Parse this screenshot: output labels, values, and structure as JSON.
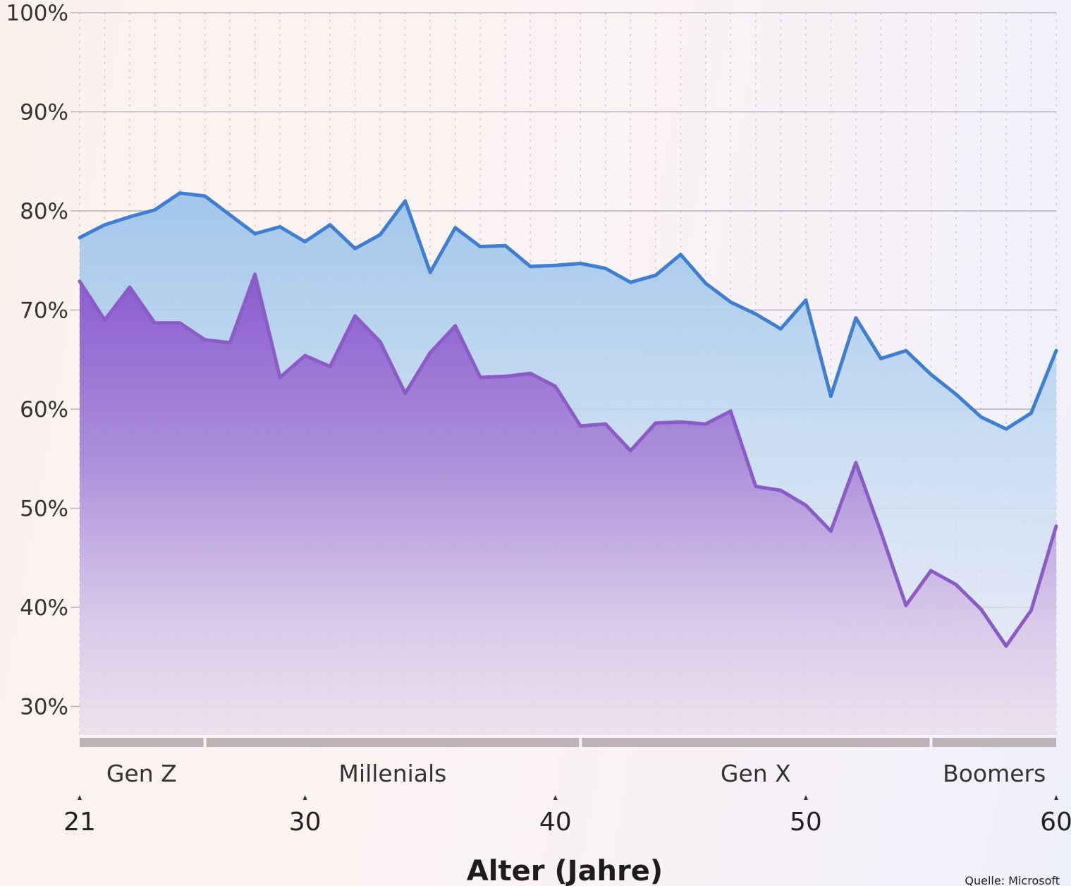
{
  "chart_data": {
    "type": "area",
    "xlabel": "Alter (Jahre)",
    "ylabel": "",
    "xlim": [
      21,
      60
    ],
    "ylim": [
      26,
      100
    ],
    "x_ticks": [
      21,
      30,
      40,
      50,
      60
    ],
    "y_ticks": [
      100,
      90,
      80,
      70,
      60,
      50,
      40,
      30
    ],
    "y_tick_labels": [
      "100%",
      "90%",
      "80%",
      "70%",
      "60%",
      "50%",
      "40%",
      "30%"
    ],
    "grid": true,
    "x": [
      21,
      22,
      23,
      24,
      25,
      26,
      27,
      28,
      29,
      30,
      31,
      32,
      33,
      34,
      35,
      36,
      37,
      38,
      39,
      40,
      41,
      42,
      43,
      44,
      45,
      46,
      47,
      48,
      49,
      50,
      51,
      52,
      53,
      54,
      55,
      56,
      57,
      58,
      59,
      60
    ],
    "series": [
      {
        "name": "",
        "color": "#3f7ed0",
        "fill": "#a9cbec",
        "values": [
          77.3,
          78.6,
          79.4,
          80.1,
          81.8,
          81.5,
          79.6,
          77.7,
          78.4,
          76.9,
          78.6,
          76.2,
          77.6,
          81.0,
          73.8,
          78.3,
          76.4,
          76.5,
          74.4,
          74.5,
          74.7,
          74.2,
          72.8,
          73.5,
          75.6,
          72.7,
          70.8,
          69.6,
          68.1,
          71.0,
          61.3,
          69.2,
          65.1,
          65.9,
          63.5,
          61.5,
          59.2,
          58.0,
          59.6,
          65.9
        ]
      },
      {
        "name": "",
        "color": "#8b5cc6",
        "fill": "#9a6fd3",
        "values": [
          72.9,
          69.0,
          72.3,
          68.7,
          68.7,
          67.0,
          66.7,
          73.6,
          63.2,
          65.4,
          64.3,
          69.4,
          66.8,
          61.6,
          65.7,
          68.4,
          63.2,
          63.3,
          63.6,
          62.3,
          58.3,
          58.5,
          55.8,
          58.6,
          58.7,
          58.5,
          59.8,
          52.2,
          51.8,
          50.3,
          47.7,
          54.6,
          47.6,
          40.2,
          43.7,
          42.3,
          39.8,
          36.1,
          39.7,
          48.2
        ]
      }
    ],
    "generations": [
      {
        "label": "Gen Z",
        "from": 21,
        "to": 26
      },
      {
        "label": "Millenials",
        "from": 26,
        "to": 41
      },
      {
        "label": "Gen X",
        "from": 41,
        "to": 55
      },
      {
        "label": "Boomers",
        "from": 55,
        "to": 60
      }
    ],
    "source": "Quelle: Microsoft"
  }
}
